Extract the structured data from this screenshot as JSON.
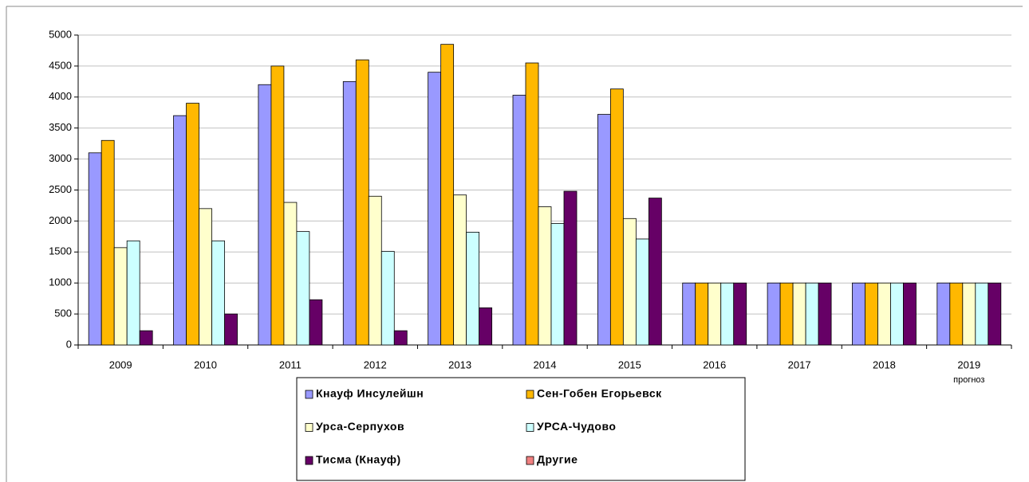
{
  "chart_data": {
    "type": "bar",
    "categories": [
      "2009",
      "2010",
      "2011",
      "2012",
      "2013",
      "2014",
      "2015",
      "2016",
      "2017",
      "2018",
      "2019"
    ],
    "annotations": [
      "прогноз"
    ],
    "series": [
      {
        "name": "Кнауф Инсулейшн",
        "color": "#9999ff",
        "values": [
          3100,
          3700,
          4200,
          4250,
          4400,
          4030,
          3720,
          1000,
          1000,
          1000,
          1000
        ]
      },
      {
        "name": "Сен-Гобен Егорьевск",
        "color": "#ffb800",
        "values": [
          3300,
          3900,
          4500,
          4600,
          4850,
          4550,
          4130,
          1000,
          1000,
          1000,
          1000
        ]
      },
      {
        "name": "Урса-Серпухов",
        "color": "#ffffcc",
        "values": [
          1570,
          2200,
          2300,
          2400,
          2420,
          2230,
          2040,
          1000,
          1000,
          1000,
          1000
        ]
      },
      {
        "name": "УРСА-Чудово",
        "color": "#ccffff",
        "values": [
          1680,
          1680,
          1830,
          1510,
          1820,
          1960,
          1710,
          1000,
          1000,
          1000,
          1000
        ]
      },
      {
        "name": "Тисма (Кнауф)",
        "color": "#660066",
        "values": [
          230,
          500,
          730,
          230,
          600,
          2480,
          2370,
          1000,
          1000,
          1000,
          1000
        ]
      },
      {
        "name": "Другие",
        "color": "#f08080",
        "values": [
          null,
          null,
          null,
          null,
          null,
          null,
          null,
          null,
          null,
          null,
          null
        ]
      }
    ],
    "ylim": [
      0,
      5000
    ],
    "yticks": [
      0,
      500,
      1000,
      1500,
      2000,
      2500,
      3000,
      3500,
      4000,
      4500,
      5000
    ],
    "grid": true,
    "legend": "bottom"
  }
}
